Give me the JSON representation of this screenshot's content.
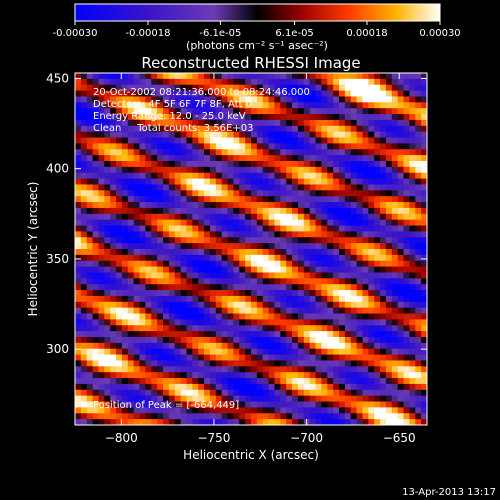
{
  "chart_data": {
    "type": "heatmap",
    "title": "Reconstructed RHESSI Image",
    "xlabel": "Heliocentric X (arcsec)",
    "ylabel": "Heliocentric Y (arcsec)",
    "xlim": [
      -825,
      -635
    ],
    "ylim": [
      258,
      453
    ],
    "x_ticks": [
      -800,
      -750,
      -700,
      -650
    ],
    "y_ticks": [
      300,
      350,
      400,
      450
    ],
    "colorbar": {
      "min": -0.0003,
      "max": 0.0003,
      "tick_values": [
        -0.0003,
        -0.00018,
        -6.1e-05,
        6.1e-05,
        0.00018,
        0.0003
      ],
      "tick_labels": [
        "-0.00030",
        "-0.00018",
        "-6.1e-05",
        "6.1e-05",
        "0.00018",
        "0.00030"
      ],
      "unit_label": "(photons cm⁻² s⁻¹ asec⁻²)"
    },
    "annotations": [
      "20-Oct-2002 08:21:36.000 to 08:24:46.000",
      "Detectors: 4F 5F 6F 7F 8F, Att 0",
      "Energy Range: 12.0 - 25.0 keV",
      "Clean     Total counts: 3.56E+03"
    ],
    "peak_label": "Position of Peak = [-664,449]",
    "peak": [
      -664,
      449
    ],
    "colormap": "red-temperature",
    "grid": false
  },
  "footer": {
    "date": "13-Apr-2013 13:17"
  }
}
